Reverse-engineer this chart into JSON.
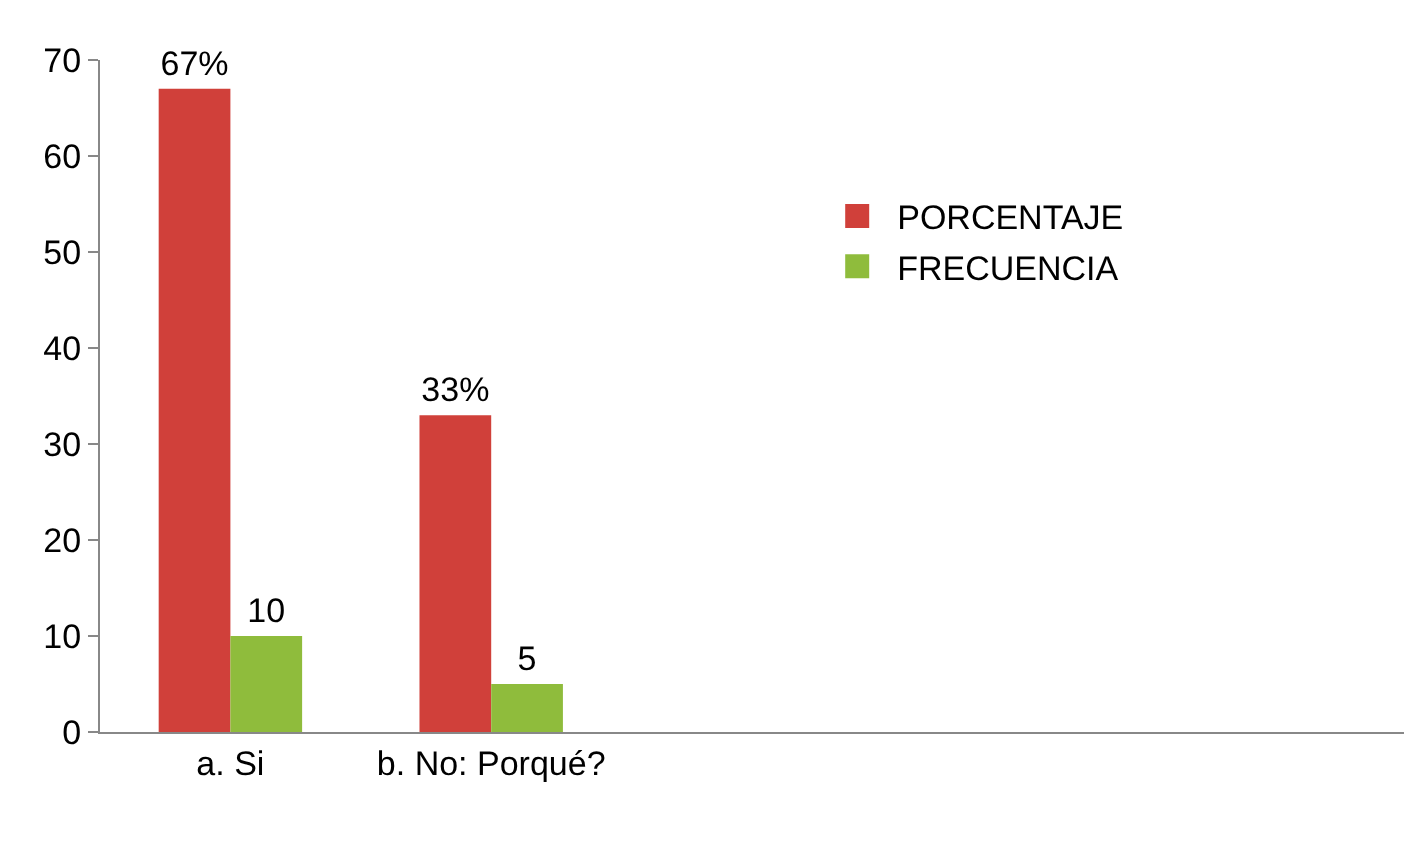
{
  "chart_data": {
    "type": "bar",
    "categories": [
      "a. Si",
      "b. No: Porqué?",
      null,
      null,
      null
    ],
    "series": [
      {
        "name": "PORCENTAJE",
        "color": "#d0403a",
        "values": [
          67,
          33,
          null,
          null,
          null
        ],
        "value_labels": [
          "67%",
          "33%",
          null,
          null,
          null
        ]
      },
      {
        "name": "FRECUENCIA",
        "color": "#8fbc3c",
        "values": [
          10,
          5,
          null,
          null,
          null
        ],
        "value_labels": [
          "10",
          "5",
          null,
          null,
          null
        ]
      }
    ],
    "ylim": [
      0,
      70
    ],
    "yticks": [
      0,
      10,
      20,
      30,
      40,
      50,
      60,
      70
    ],
    "legend": "top right"
  }
}
